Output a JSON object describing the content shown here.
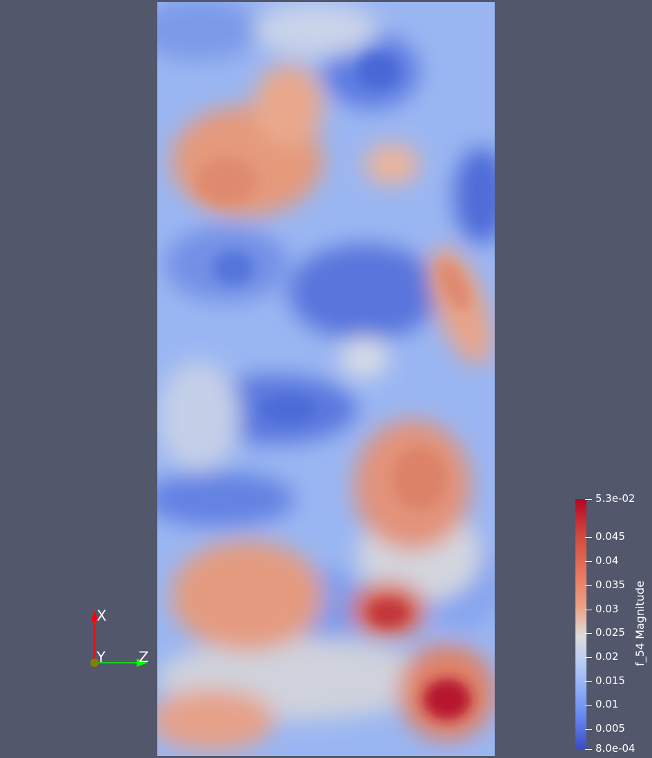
{
  "scene": {
    "background_color": "#52576b",
    "field_name": "f_54 Magnitude",
    "colormap": {
      "name": "Cool to Warm",
      "low_color": "#3b4cc0",
      "mid_color": "#dcdcdc",
      "high_color": "#b40426"
    }
  },
  "orientation_axes": {
    "x_label": "X",
    "y_label": "Y",
    "z_label": "Z",
    "x_color": "#ff0000",
    "y_color": "#808000",
    "z_color": "#00ff00"
  },
  "color_legend": {
    "title": "f_54 Magnitude",
    "max_label": "5.3e-02",
    "min_label": "8.0e-04",
    "range": [
      0.0008,
      0.053
    ],
    "ticks": [
      {
        "value": 0.045,
        "label": "0.045"
      },
      {
        "value": 0.04,
        "label": "0.04"
      },
      {
        "value": 0.035,
        "label": "0.035"
      },
      {
        "value": 0.03,
        "label": "0.03"
      },
      {
        "value": 0.025,
        "label": "0.025"
      },
      {
        "value": 0.02,
        "label": "0.02"
      },
      {
        "value": 0.015,
        "label": "0.015"
      },
      {
        "value": 0.01,
        "label": "0.01"
      },
      {
        "value": 0.005,
        "label": "0.005"
      }
    ]
  }
}
